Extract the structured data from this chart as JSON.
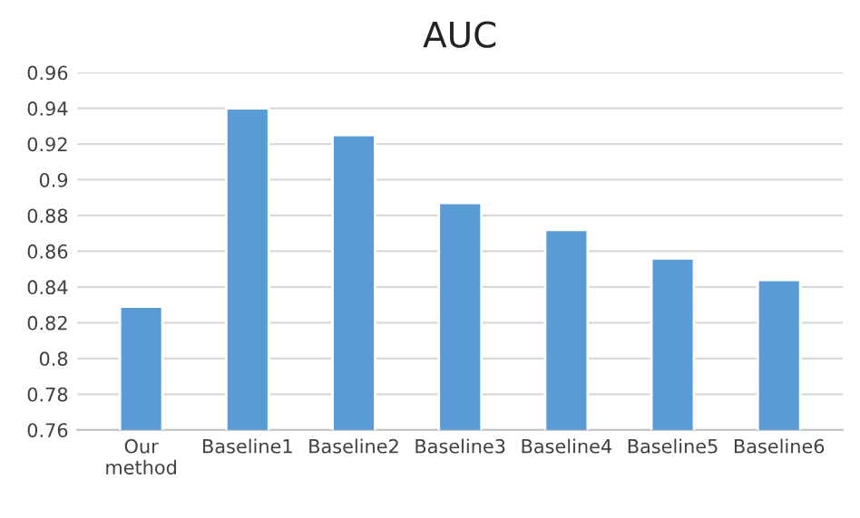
{
  "chart_data": {
    "type": "bar",
    "title": "AUC",
    "categories": [
      "Our method",
      "Baseline1",
      "Baseline2",
      "Baseline3",
      "Baseline4",
      "Baseline5",
      "Baseline6"
    ],
    "values": [
      0.829,
      0.94,
      0.925,
      0.887,
      0.872,
      0.856,
      0.844
    ],
    "color": "#5b9bd5",
    "ylim": [
      0.76,
      0.96
    ],
    "yticks": [
      0.76,
      0.78,
      0.8,
      0.82,
      0.84,
      0.86,
      0.88,
      0.9,
      0.92,
      0.94,
      0.96
    ],
    "grid": "y",
    "legend": false
  }
}
